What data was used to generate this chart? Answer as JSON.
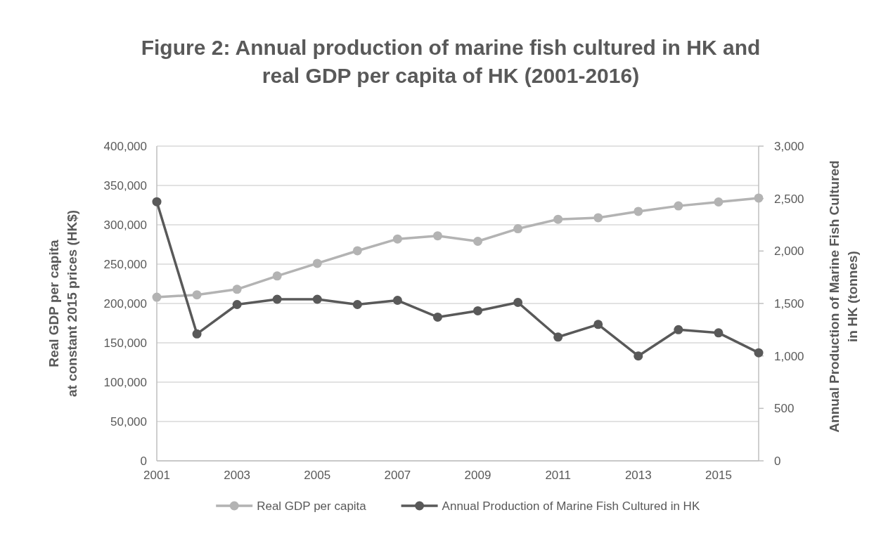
{
  "chart_data": {
    "type": "line",
    "title": "Figure 2: Annual production of marine fish cultured in HK and\nreal GDP per capita of HK (2001-2016)",
    "ylabel": "Real GDP per capita\nat constant 2015 prices (HK$)",
    "y2label": "Annual Production of Marine Fish Cultured\nin HK (tonnes)",
    "categories": [
      "2001",
      null,
      "2003",
      null,
      "2005",
      null,
      "2007",
      null,
      "2009",
      null,
      "2011",
      null,
      "2013",
      null,
      "2015",
      null
    ],
    "ylim": [
      0,
      400000
    ],
    "yticks": [
      {
        "value": 0,
        "label": "0"
      },
      {
        "value": 50000,
        "label": "50,000"
      },
      {
        "value": 100000,
        "label": "100,000"
      },
      {
        "value": 150000,
        "label": "150,000"
      },
      {
        "value": 200000,
        "label": "200,000"
      },
      {
        "value": 250000,
        "label": "250,000"
      },
      {
        "value": 300000,
        "label": "300,000"
      },
      {
        "value": 350000,
        "label": "350,000"
      },
      {
        "value": 400000,
        "label": "400,000"
      }
    ],
    "y2lim": [
      0,
      3000
    ],
    "y2ticks": [
      {
        "value": 0,
        "label": "0"
      },
      {
        "value": 500,
        "label": "500"
      },
      {
        "value": 1000,
        "label": "1,000"
      },
      {
        "value": 1500,
        "label": "1,500"
      },
      {
        "value": 2000,
        "label": "2,000"
      },
      {
        "value": 2500,
        "label": "2,500"
      },
      {
        "value": 3000,
        "label": "3,000"
      }
    ],
    "series": [
      {
        "name": "Real GDP per capita",
        "color": "#b3b3b3",
        "values": [
          208000,
          211000,
          218000,
          235000,
          251000,
          267000,
          282000,
          286000,
          279000,
          295000,
          307000,
          309000,
          317000,
          324000,
          329000,
          334000
        ]
      },
      {
        "name": "Annual Production of Marine Fish Cultured in HK",
        "color": "#595959",
        "axis": "y2",
        "values": [
          2470,
          1210,
          1490,
          1540,
          1540,
          1490,
          1530,
          1370,
          1430,
          1510,
          1180,
          1300,
          1000,
          1250,
          1220,
          1030
        ]
      }
    ],
    "grid": "y",
    "legend": "bottom",
    "marker": "circle",
    "line_style": "solid"
  }
}
